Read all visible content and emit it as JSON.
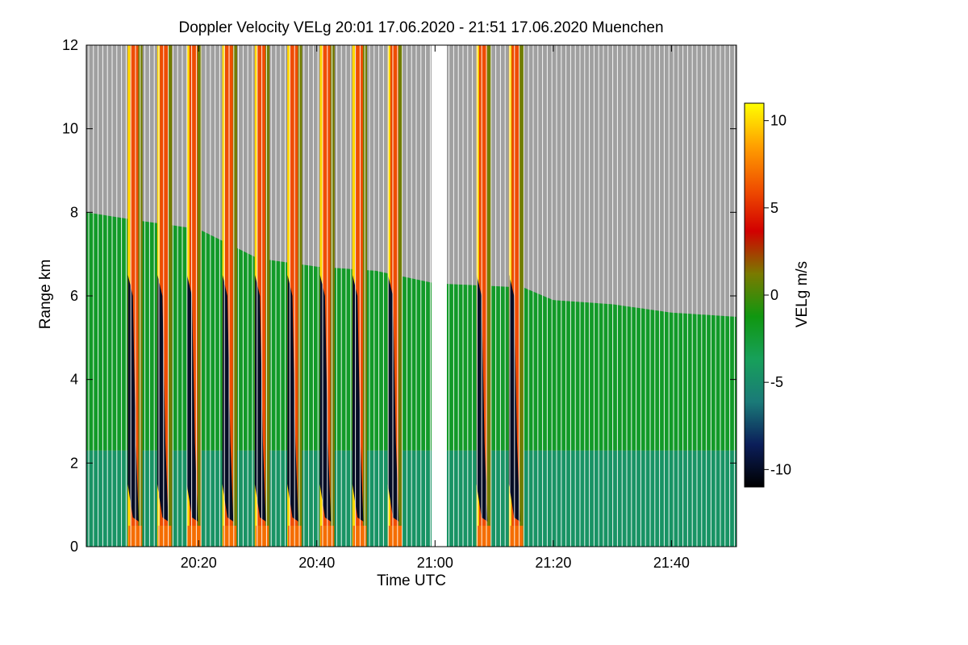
{
  "chart_data": {
    "type": "heatmap",
    "title": "Doppler Velocity VELg   20:01 17.06.2020 - 21:51 17.06.2020 Muenchen",
    "xlabel": "Time UTC",
    "ylabel": "Range km",
    "x_range_minutes": [
      1,
      111
    ],
    "x_ticks": [
      {
        "minute": 20,
        "label": "20:20"
      },
      {
        "minute": 40,
        "label": "20:40"
      },
      {
        "minute": 60,
        "label": "21:00"
      },
      {
        "minute": 80,
        "label": "21:20"
      },
      {
        "minute": 100,
        "label": "21:40"
      }
    ],
    "y_range_km": [
      0,
      12
    ],
    "y_ticks": [
      0,
      2,
      4,
      6,
      8,
      10,
      12
    ],
    "colorbar": {
      "label": "VELg m/s",
      "range": [
        -11,
        11
      ],
      "ticks": [
        10,
        5,
        0,
        -5,
        -10
      ],
      "colors": [
        "#000000",
        "#0b1e5a",
        "#1a7a78",
        "#17a05a",
        "#109710",
        "#7a7a00",
        "#d20000",
        "#f05000",
        "#ffa000",
        "#ffff00"
      ]
    },
    "no_data_color": "#a0a0a0",
    "data_gap_minutes": [
      59.4,
      62.0
    ],
    "precip_events": [
      {
        "start_min": 8.0,
        "end_min": 10.5,
        "top_km": 12
      },
      {
        "start_min": 13.0,
        "end_min": 15.5,
        "top_km": 12
      },
      {
        "start_min": 18.0,
        "end_min": 20.5,
        "top_km": 12
      },
      {
        "start_min": 24.0,
        "end_min": 26.5,
        "top_km": 12
      },
      {
        "start_min": 29.5,
        "end_min": 32.0,
        "top_km": 12
      },
      {
        "start_min": 35.0,
        "end_min": 37.5,
        "top_km": 12
      },
      {
        "start_min": 40.5,
        "end_min": 43.0,
        "top_km": 12
      },
      {
        "start_min": 46.0,
        "end_min": 48.5,
        "top_km": 12
      },
      {
        "start_min": 52.0,
        "end_min": 54.5,
        "top_km": 12
      },
      {
        "start_min": 67.0,
        "end_min": 69.5,
        "top_km": 12
      },
      {
        "start_min": 72.5,
        "end_min": 75.0,
        "top_km": 12
      }
    ],
    "cloud_top_km": [
      {
        "minute": 1,
        "km": 8.0
      },
      {
        "minute": 10,
        "km": 7.8
      },
      {
        "minute": 20,
        "km": 7.6
      },
      {
        "minute": 30,
        "km": 6.9
      },
      {
        "minute": 40,
        "km": 6.7
      },
      {
        "minute": 50,
        "km": 6.6
      },
      {
        "minute": 60,
        "km": 6.3
      },
      {
        "minute": 75,
        "km": 6.2
      },
      {
        "minute": 80,
        "km": 5.9
      },
      {
        "minute": 90,
        "km": 5.8
      },
      {
        "minute": 100,
        "km": 5.6
      },
      {
        "minute": 111,
        "km": 5.5
      }
    ],
    "background_velocity_bands": [
      {
        "from_km": 0,
        "to_km": 2.3,
        "velocity": -4.5
      },
      {
        "from_km": 2.3,
        "to_km": 8,
        "velocity": -2.0
      }
    ]
  }
}
